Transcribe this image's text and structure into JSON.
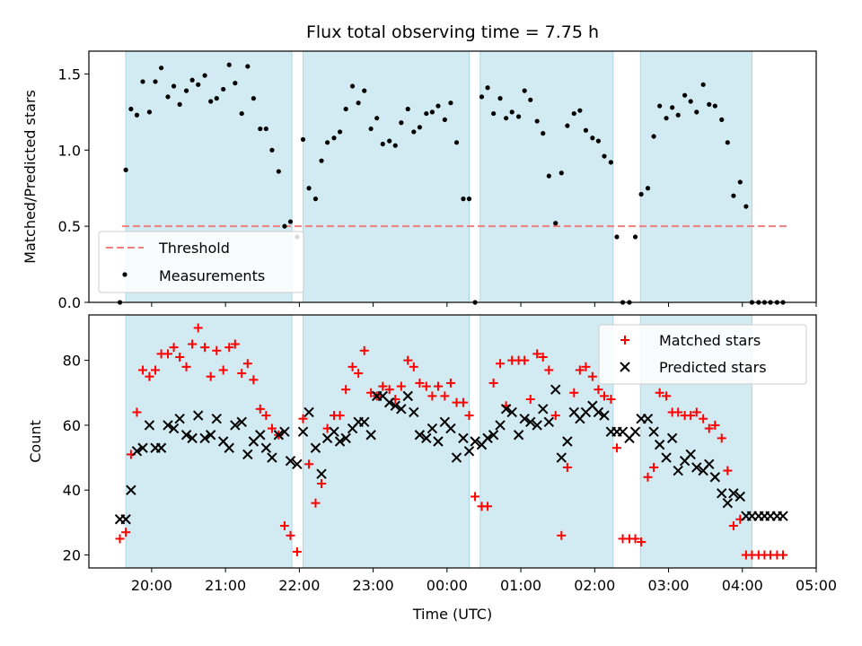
{
  "chart_data": {
    "title": "Flux total observing time = 7.75 h",
    "xlabel": "Time (UTC)",
    "x_ticks": [
      "20:00",
      "21:00",
      "22:00",
      "23:00",
      "00:00",
      "01:00",
      "02:00",
      "03:00",
      "04:00",
      "05:00"
    ],
    "x_tick_values": [
      20,
      21,
      22,
      23,
      24,
      25,
      26,
      27,
      28,
      29
    ],
    "xlim": [
      19.15,
      29.0
    ],
    "shaded_intervals": [
      [
        19.65,
        21.9
      ],
      [
        22.05,
        24.3
      ],
      [
        24.45,
        26.25
      ],
      [
        26.62,
        28.13
      ]
    ],
    "colors": {
      "shade": "#add8e6",
      "matched": "#ff0000",
      "predicted": "#000000",
      "threshold": "#f08080",
      "measurement": "#000000"
    },
    "panels": [
      {
        "type": "scatter",
        "ylabel": "Matched/Predicted stars",
        "ylim": [
          0,
          1.65
        ],
        "y_ticks": [
          "0.0",
          "0.5",
          "1.0",
          "1.5"
        ],
        "y_tick_values": [
          0,
          0.5,
          1.0,
          1.5
        ],
        "legend_position": "lower-left",
        "series": [
          {
            "name": "Threshold",
            "kind": "dashed-line",
            "x": [
              19.6,
              28.6
            ],
            "y": [
              0.5,
              0.5
            ]
          },
          {
            "name": "Measurements",
            "kind": "points",
            "x": [
              19.57,
              19.65,
              19.72,
              19.8,
              19.88,
              19.97,
              20.05,
              20.13,
              20.22,
              20.3,
              20.38,
              20.47,
              20.55,
              20.63,
              20.72,
              20.8,
              20.88,
              20.97,
              21.05,
              21.13,
              21.22,
              21.3,
              21.38,
              21.47,
              21.55,
              21.63,
              21.72,
              21.8,
              21.88,
              21.97,
              22.05,
              22.13,
              22.22,
              22.3,
              22.38,
              22.47,
              22.55,
              22.63,
              22.72,
              22.8,
              22.88,
              22.97,
              23.05,
              23.13,
              23.22,
              23.3,
              23.38,
              23.47,
              23.55,
              23.63,
              23.72,
              23.8,
              23.88,
              23.97,
              24.05,
              24.13,
              24.22,
              24.3,
              24.38,
              24.47,
              24.55,
              24.63,
              24.72,
              24.8,
              24.88,
              24.97,
              25.05,
              25.13,
              25.22,
              25.3,
              25.38,
              25.47,
              25.55,
              25.63,
              25.72,
              25.8,
              25.88,
              25.97,
              26.05,
              26.13,
              26.22,
              26.3,
              26.38,
              26.47,
              26.55,
              26.63,
              26.72,
              26.8,
              26.88,
              26.97,
              27.05,
              27.13,
              27.22,
              27.3,
              27.38,
              27.47,
              27.55,
              27.63,
              27.72,
              27.8,
              27.88,
              27.97,
              28.05,
              28.13,
              28.22,
              28.3,
              28.38,
              28.47,
              28.55
            ],
            "y": [
              0.0,
              0.87,
              1.27,
              1.23,
              1.45,
              1.25,
              1.45,
              1.54,
              1.35,
              1.42,
              1.3,
              1.39,
              1.46,
              1.43,
              1.49,
              1.32,
              1.34,
              1.4,
              1.56,
              1.44,
              1.24,
              1.55,
              1.34,
              1.14,
              1.14,
              1.0,
              0.86,
              0.5,
              0.53,
              0.43,
              1.07,
              0.75,
              0.68,
              0.93,
              1.05,
              1.08,
              1.12,
              1.27,
              1.42,
              1.31,
              1.39,
              1.14,
              1.21,
              1.04,
              1.06,
              1.03,
              1.18,
              1.27,
              1.12,
              1.15,
              1.24,
              1.25,
              1.29,
              1.2,
              1.31,
              1.05,
              0.68,
              0.68,
              0.0,
              1.35,
              1.41,
              1.24,
              1.34,
              1.21,
              1.25,
              1.22,
              1.39,
              1.33,
              1.19,
              1.11,
              0.83,
              0.52,
              0.85,
              1.16,
              1.24,
              1.26,
              1.13,
              1.08,
              1.06,
              0.96,
              0.92,
              0.43,
              0.0,
              0.0,
              0.43,
              0.71,
              0.75,
              1.09,
              1.29,
              1.21,
              1.28,
              1.23,
              1.36,
              1.32,
              1.25,
              1.43,
              1.3,
              1.29,
              1.2,
              1.05,
              0.7,
              0.79,
              0.63,
              0.0,
              0.0,
              0.0,
              0.0,
              0.0,
              0.0
            ]
          }
        ]
      },
      {
        "type": "scatter",
        "ylabel": "Count",
        "ylim": [
          16,
          94
        ],
        "y_ticks": [
          "20",
          "40",
          "60",
          "80"
        ],
        "y_tick_values": [
          20,
          40,
          60,
          80
        ],
        "legend_position": "upper-right",
        "series": [
          {
            "name": "Matched stars",
            "kind": "plus",
            "x": [
              19.57,
              19.65,
              19.72,
              19.8,
              19.88,
              19.97,
              20.05,
              20.13,
              20.22,
              20.3,
              20.38,
              20.47,
              20.55,
              20.63,
              20.72,
              20.8,
              20.88,
              20.97,
              21.05,
              21.13,
              21.22,
              21.3,
              21.38,
              21.47,
              21.55,
              21.63,
              21.72,
              21.8,
              21.88,
              21.97,
              22.05,
              22.13,
              22.22,
              22.3,
              22.38,
              22.47,
              22.55,
              22.63,
              22.72,
              22.8,
              22.88,
              22.97,
              23.05,
              23.13,
              23.22,
              23.3,
              23.38,
              23.47,
              23.55,
              23.63,
              23.72,
              23.8,
              23.88,
              23.97,
              24.05,
              24.13,
              24.22,
              24.3,
              24.38,
              24.47,
              24.55,
              24.63,
              24.72,
              24.8,
              24.88,
              24.97,
              25.05,
              25.13,
              25.22,
              25.3,
              25.38,
              25.47,
              25.55,
              25.63,
              25.72,
              25.8,
              25.88,
              25.97,
              26.05,
              26.13,
              26.22,
              26.3,
              26.38,
              26.47,
              26.55,
              26.63,
              26.72,
              26.8,
              26.88,
              26.97,
              27.05,
              27.13,
              27.22,
              27.3,
              27.38,
              27.47,
              27.55,
              27.63,
              27.72,
              27.8,
              27.88,
              27.97,
              28.05,
              28.13,
              28.22,
              28.3,
              28.38,
              28.47,
              28.55
            ],
            "y": [
              25,
              27,
              51,
              64,
              77,
              75,
              77,
              82,
              82,
              84,
              81,
              78,
              85,
              90,
              84,
              75,
              83,
              77,
              84,
              85,
              76,
              79,
              74,
              65,
              63,
              59,
              57,
              29,
              26,
              21,
              62,
              48,
              36,
              42,
              59,
              63,
              63,
              71,
              78,
              76,
              83,
              70,
              69,
              72,
              71,
              68,
              72,
              80,
              78,
              73,
              72,
              69,
              72,
              69,
              73,
              67,
              67,
              63,
              38,
              35,
              35,
              73,
              79,
              66,
              80,
              80,
              80,
              68,
              82,
              81,
              77,
              63,
              26,
              47,
              70,
              77,
              78,
              75,
              71,
              69,
              68,
              53,
              25,
              25,
              25,
              24,
              44,
              47,
              70,
              69,
              64,
              64,
              63,
              63,
              64,
              62,
              59,
              60,
              56,
              46,
              29,
              31,
              20,
              20,
              20,
              20,
              20,
              20,
              20
            ]
          },
          {
            "name": "Predicted stars",
            "kind": "x",
            "x": [
              19.57,
              19.65,
              19.72,
              19.8,
              19.88,
              19.97,
              20.05,
              20.13,
              20.22,
              20.3,
              20.38,
              20.47,
              20.55,
              20.63,
              20.72,
              20.8,
              20.88,
              20.97,
              21.05,
              21.13,
              21.22,
              21.3,
              21.38,
              21.47,
              21.55,
              21.63,
              21.72,
              21.8,
              21.88,
              21.97,
              22.05,
              22.13,
              22.22,
              22.3,
              22.38,
              22.47,
              22.55,
              22.63,
              22.72,
              22.8,
              22.88,
              22.97,
              23.05,
              23.13,
              23.22,
              23.3,
              23.38,
              23.47,
              23.55,
              23.63,
              23.72,
              23.8,
              23.88,
              23.97,
              24.05,
              24.13,
              24.22,
              24.3,
              24.38,
              24.47,
              24.55,
              24.63,
              24.72,
              24.8,
              24.88,
              24.97,
              25.05,
              25.13,
              25.22,
              25.3,
              25.38,
              25.47,
              25.55,
              25.63,
              25.72,
              25.8,
              25.88,
              25.97,
              26.05,
              26.13,
              26.22,
              26.3,
              26.38,
              26.47,
              26.55,
              26.63,
              26.72,
              26.8,
              26.88,
              26.97,
              27.05,
              27.13,
              27.22,
              27.3,
              27.38,
              27.47,
              27.55,
              27.63,
              27.72,
              27.8,
              27.88,
              27.97,
              28.05,
              28.13,
              28.22,
              28.3,
              28.38,
              28.47,
              28.55
            ],
            "y": [
              31,
              31,
              40,
              52,
              53,
              60,
              53,
              53,
              60,
              59,
              62,
              57,
              56,
              63,
              56,
              57,
              62,
              55,
              53,
              60,
              61,
              51,
              55,
              57,
              53,
              50,
              57,
              58,
              49,
              48,
              58,
              64,
              53,
              45,
              56,
              58,
              55,
              56,
              59,
              61,
              61,
              57,
              69,
              69,
              67,
              66,
              65,
              69,
              64,
              57,
              56,
              59,
              55,
              61,
              59,
              50,
              56,
              52,
              55,
              54,
              56,
              57,
              60,
              65,
              64,
              57,
              62,
              61,
              60,
              65,
              61,
              71,
              50,
              55,
              64,
              62,
              64,
              66,
              64,
              63,
              58,
              58,
              58,
              56,
              58,
              62,
              62,
              58,
              54,
              50,
              56,
              46,
              49,
              51,
              47,
              46,
              48,
              44,
              39,
              36,
              39,
              38,
              32,
              32,
              32,
              32,
              32,
              32,
              32
            ]
          }
        ]
      }
    ]
  }
}
